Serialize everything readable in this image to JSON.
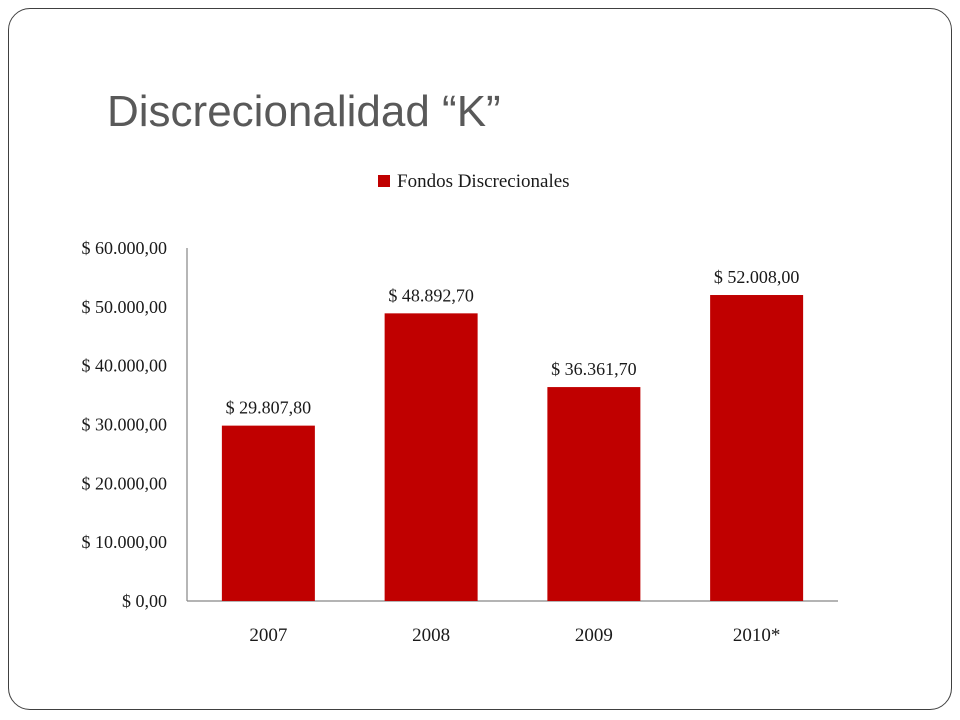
{
  "slide": {
    "title": "Discrecionalidad “K”"
  },
  "colors": {
    "bar": "#c00000",
    "axis": "#868686",
    "title_text": "#595959",
    "frame": "#404040"
  },
  "chart_data": {
    "type": "bar",
    "title": "",
    "xlabel": "",
    "ylabel": "",
    "categories": [
      "2007",
      "2008",
      "2009",
      "2010*"
    ],
    "series": [
      {
        "name": "Fondos Discrecionales",
        "values": [
          29807.8,
          48892.7,
          36361.7,
          52008.0
        ]
      }
    ],
    "data_labels": [
      "$ 29.807,80",
      "$ 48.892,70",
      "$ 36.361,70",
      "$ 52.008,00"
    ],
    "ylim": [
      0,
      60000
    ],
    "y_ticks": [
      0,
      10000,
      20000,
      30000,
      40000,
      50000,
      60000
    ],
    "y_tick_labels": [
      "$ 0,00",
      "$ 10.000,00",
      "$ 20.000,00",
      "$ 30.000,00",
      "$ 40.000,00",
      "$ 50.000,00",
      "$ 60.000,00"
    ],
    "legend_position": "top",
    "grid": false
  }
}
